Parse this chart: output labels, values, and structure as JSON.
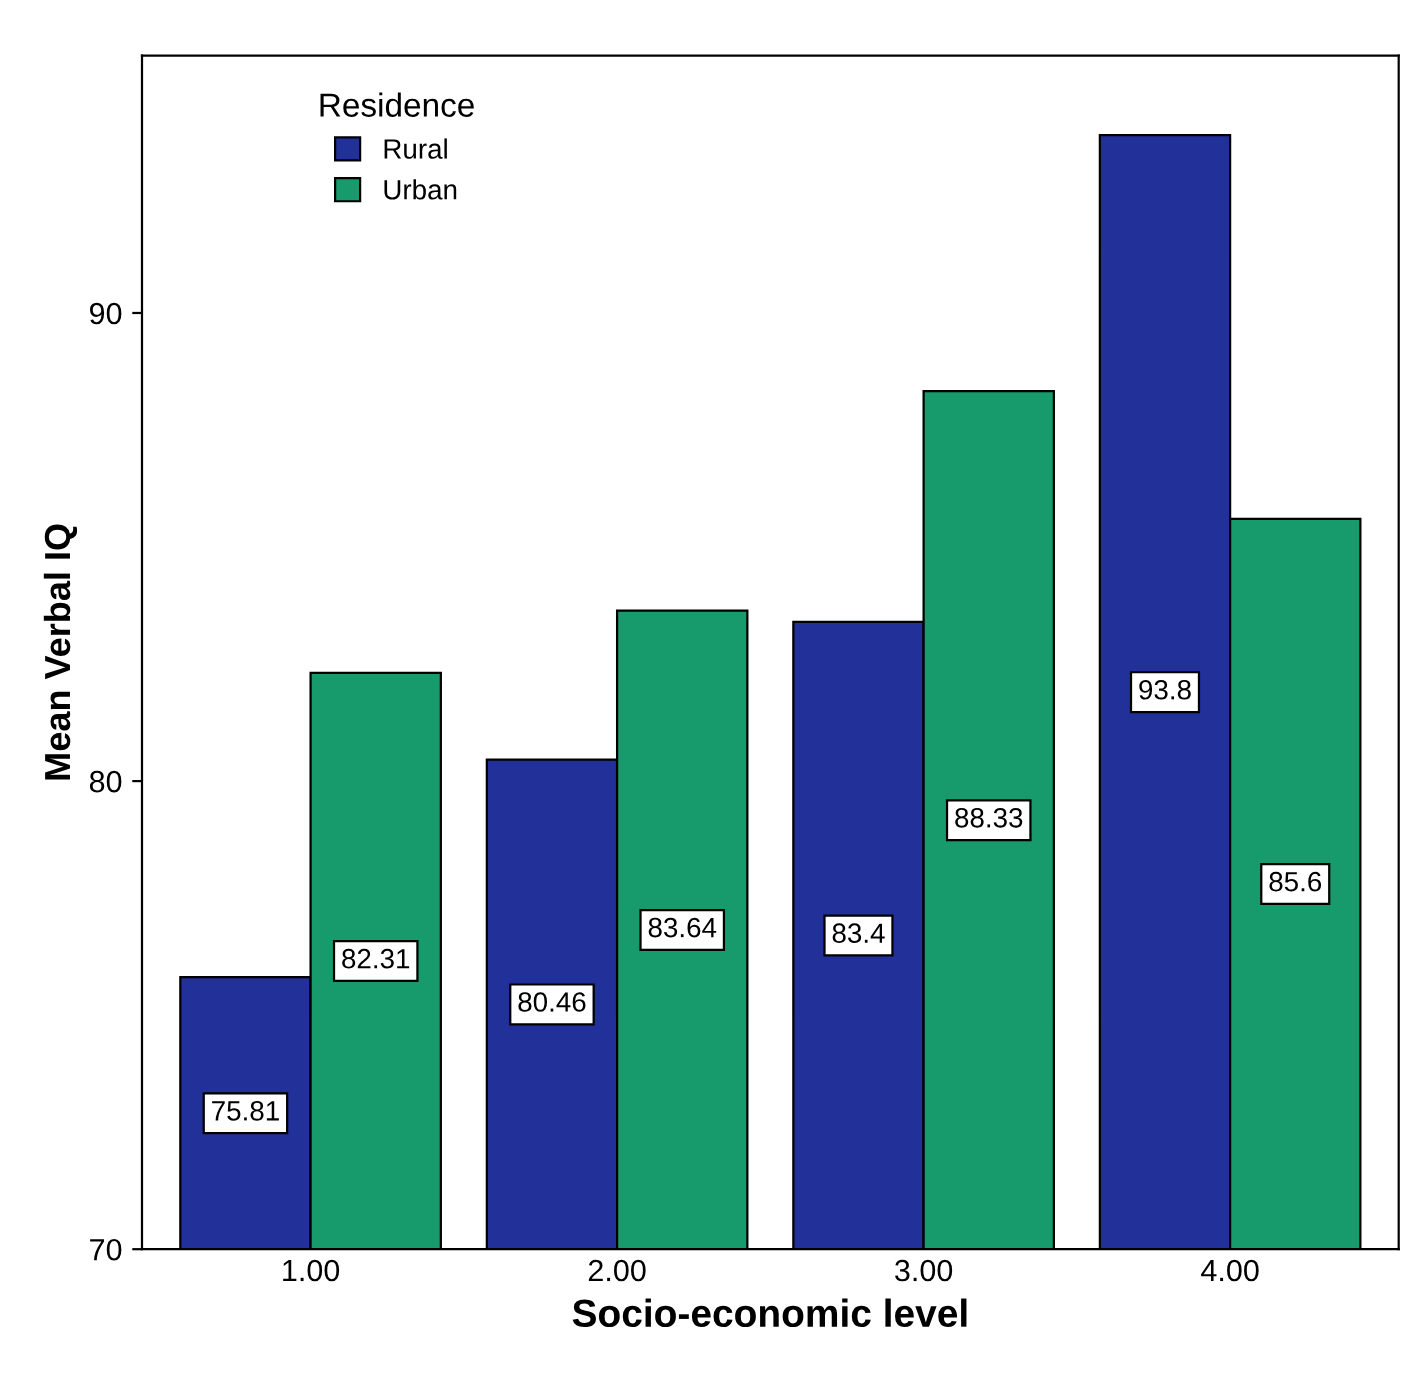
{
  "chart_data": {
    "type": "bar",
    "xlabel": "Socio-economic level",
    "ylabel": "Mean Verbal IQ",
    "legend_title": "Residence",
    "categories": [
      "1.00",
      "2.00",
      "3.00",
      "4.00"
    ],
    "series": [
      {
        "name": "Rural",
        "color": "#22309a",
        "values": [
          75.81,
          80.46,
          83.4,
          93.8
        ]
      },
      {
        "name": "Urban",
        "color": "#179a6c",
        "values": [
          82.31,
          83.64,
          88.33,
          85.6
        ]
      }
    ],
    "ylim": [
      70,
      95.5
    ],
    "yticks": [
      70,
      80,
      90
    ],
    "data_labels": true,
    "legend": "top left",
    "grid": false
  }
}
